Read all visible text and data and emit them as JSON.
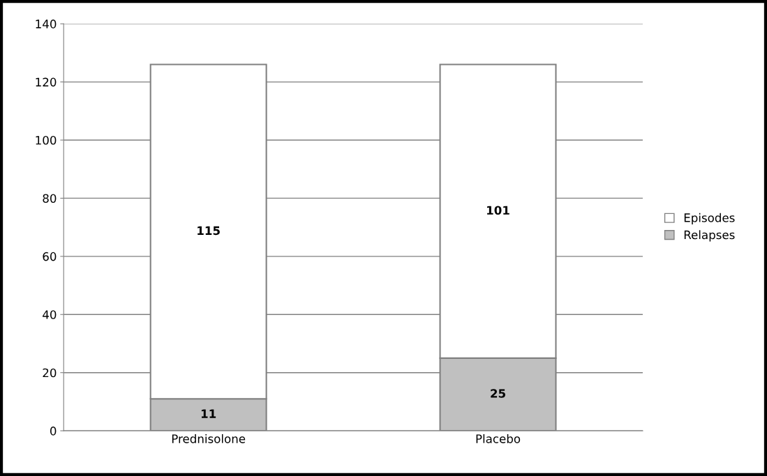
{
  "chart_data": {
    "type": "bar",
    "stacked": true,
    "categories": [
      "Prednisolone",
      "Placebo"
    ],
    "series": [
      {
        "name": "Relapses",
        "color": "#c0c0c0",
        "values": [
          11,
          25
        ]
      },
      {
        "name": "Episodes",
        "color": "#ffffff",
        "values": [
          115,
          101
        ]
      }
    ],
    "ylim": [
      0,
      140
    ],
    "yticks": [
      0,
      20,
      40,
      60,
      80,
      100,
      120,
      140
    ],
    "grid": "y",
    "legend": "right",
    "data_labels": true
  }
}
